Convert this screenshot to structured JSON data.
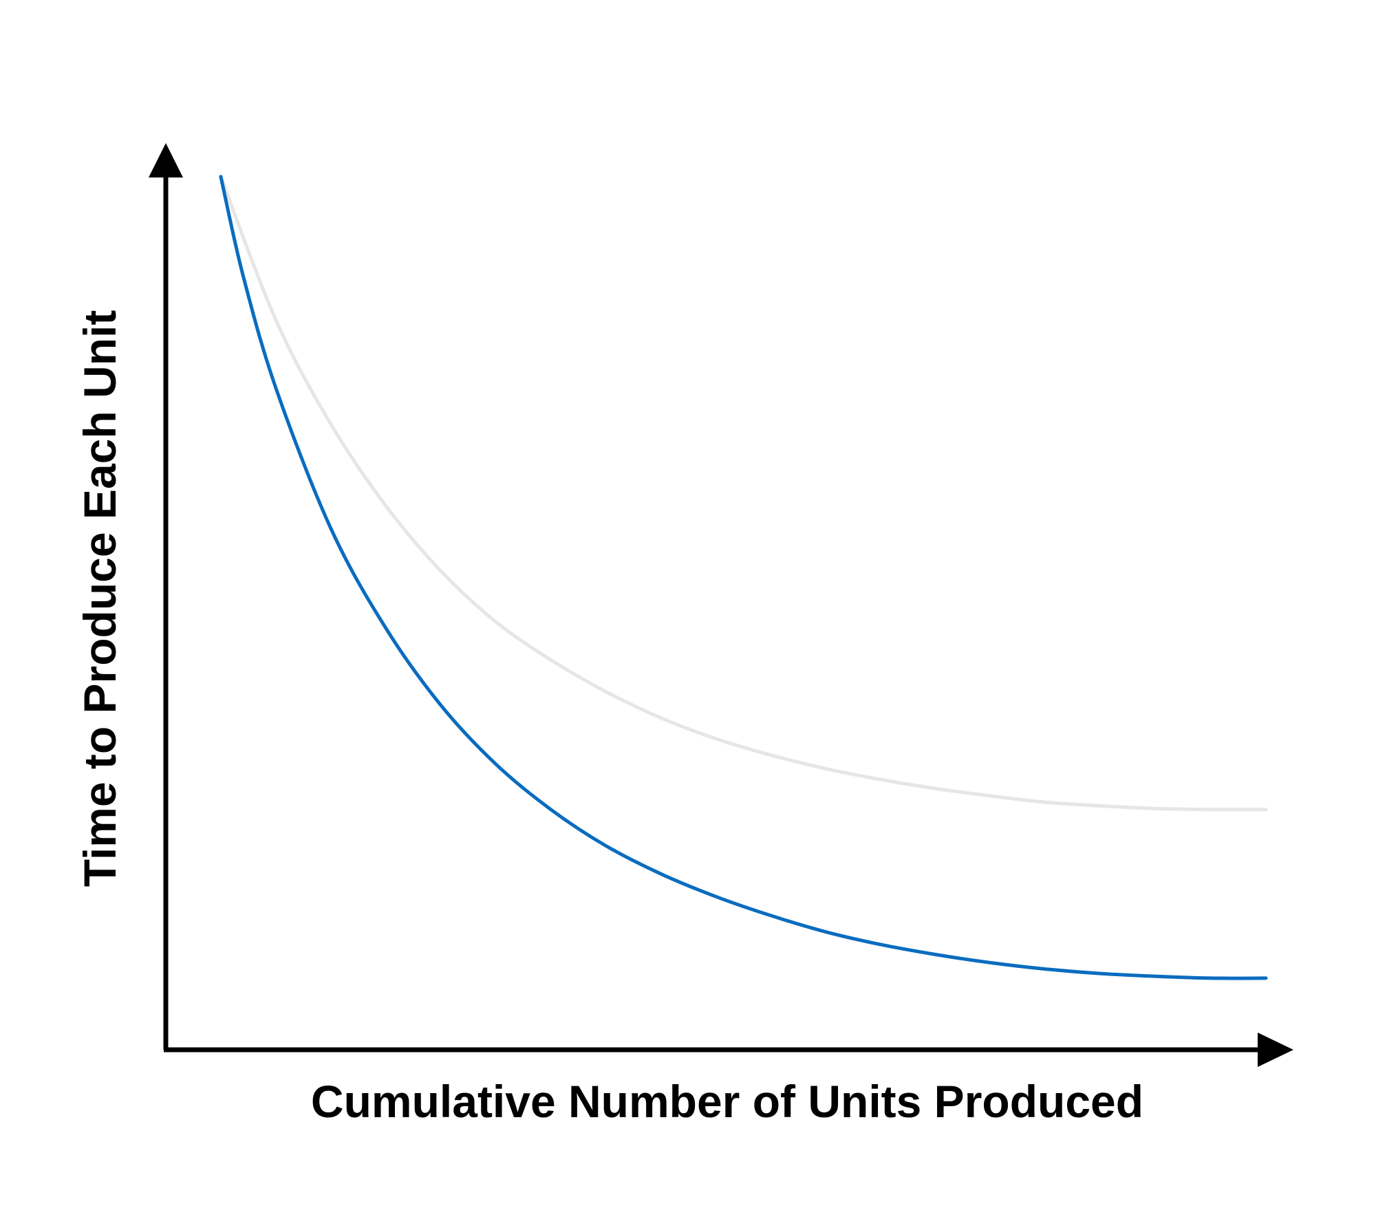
{
  "chart_data": {
    "type": "line",
    "title": "",
    "xlabel": "Cumulative Number of Units Produced",
    "ylabel": "Time to Produce Each Unit",
    "xlim": [
      0,
      100
    ],
    "ylim": [
      0,
      100
    ],
    "grid": false,
    "ticks": false,
    "legend": "none",
    "series": [
      {
        "color": "#e6e6e6",
        "x": [
          5,
          10,
          15,
          20,
          25,
          30,
          35,
          40,
          45,
          50,
          55,
          60,
          65,
          70,
          75,
          80,
          85,
          90,
          95,
          100
        ],
        "y": [
          96.3,
          80.5,
          69.0,
          60.0,
          52.8,
          47.2,
          43.0,
          39.5,
          36.6,
          34.3,
          32.5,
          31.0,
          29.8,
          28.8,
          28.0,
          27.3,
          26.9,
          26.6,
          26.5,
          26.5
        ]
      },
      {
        "color": "#0a6cbf",
        "x": [
          5,
          7,
          10,
          15,
          20,
          25,
          30,
          35,
          40,
          45,
          50,
          55,
          60,
          65,
          70,
          75,
          80,
          85,
          90,
          95,
          100
        ],
        "y": [
          96.3,
          85.5,
          73.0,
          57.5,
          46.5,
          38.0,
          31.5,
          26.5,
          22.5,
          19.4,
          16.9,
          14.8,
          13.0,
          11.6,
          10.5,
          9.6,
          8.9,
          8.4,
          8.1,
          7.9,
          7.9
        ]
      }
    ]
  }
}
